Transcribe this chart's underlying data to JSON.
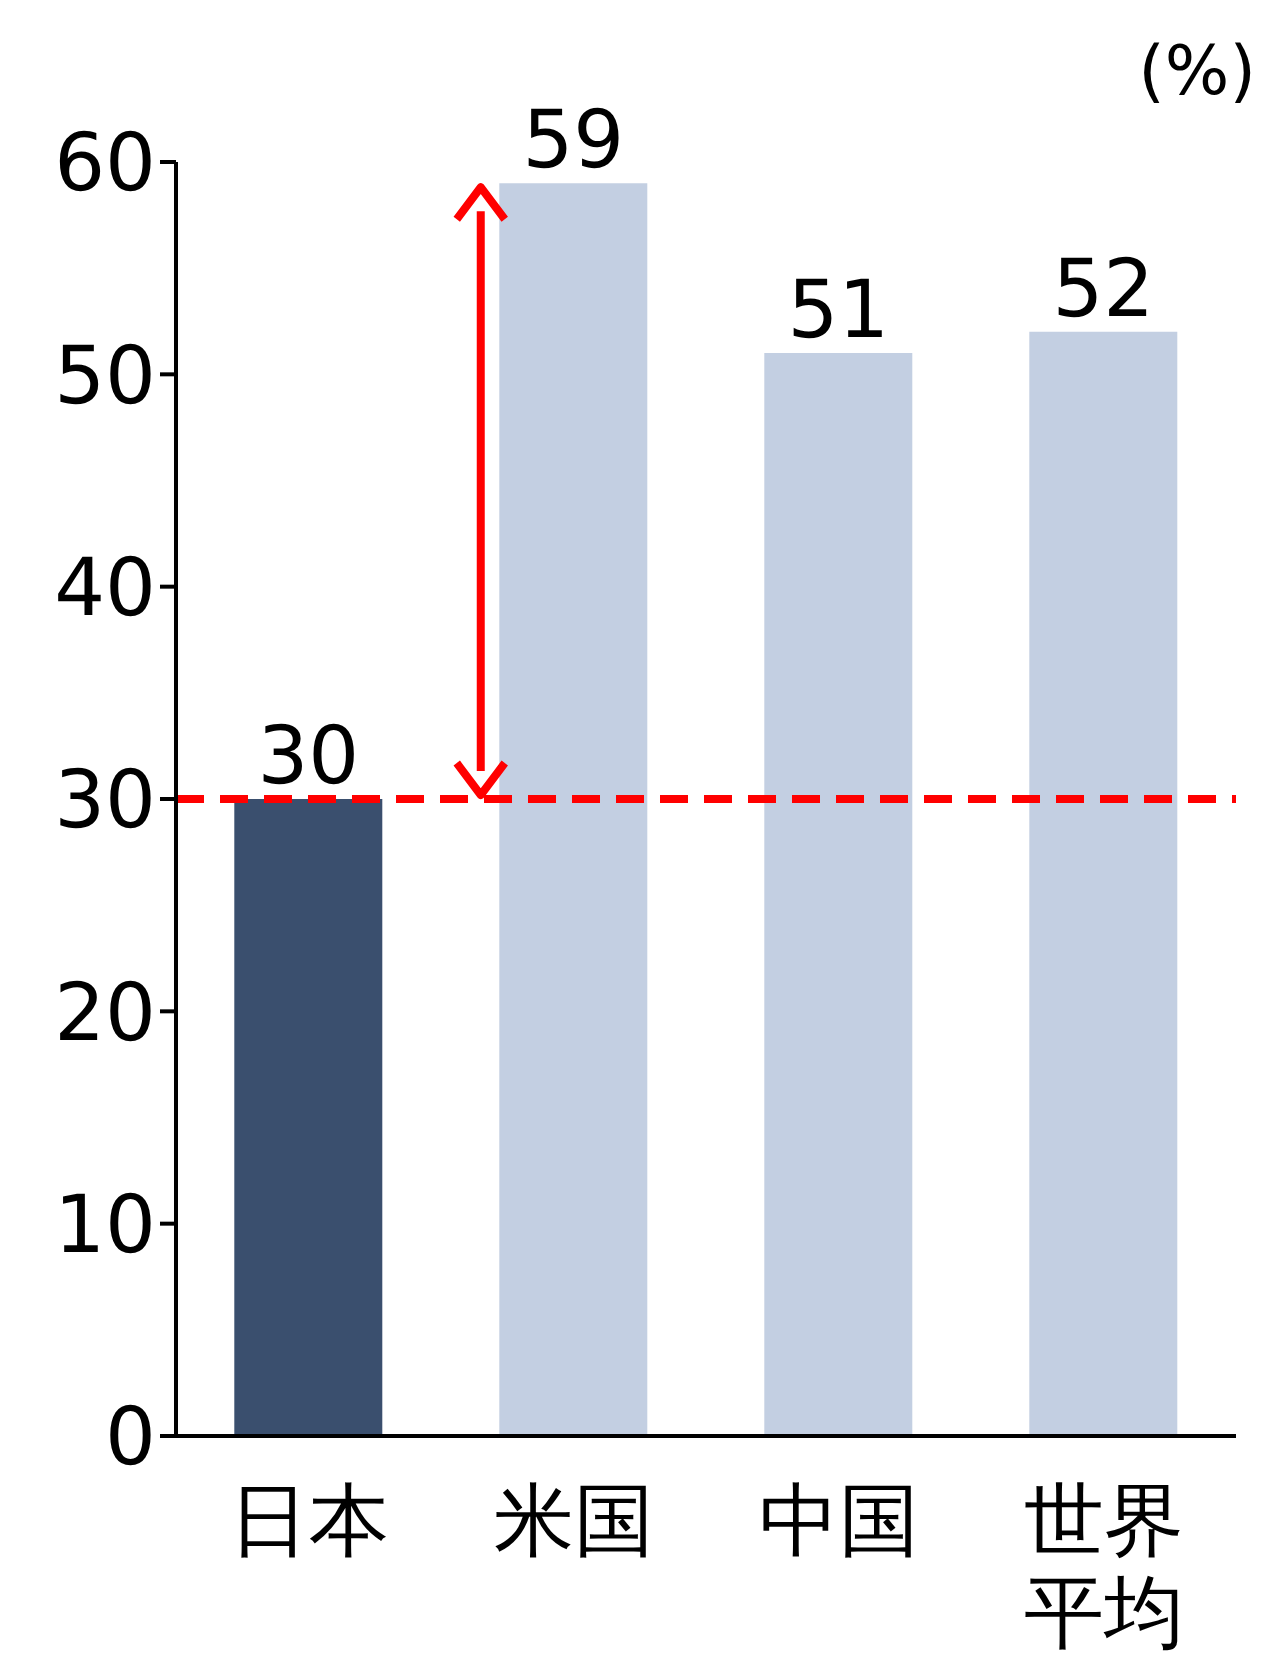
{
  "chart_data": {
    "type": "bar",
    "ylabel": "(%)",
    "categories": [
      "日本",
      "米国",
      "中国",
      "世界平均"
    ],
    "values": [
      30,
      59,
      51,
      52
    ],
    "colors": [
      "#3a4f6e",
      "#c3cfe2",
      "#c3cfe2",
      "#c3cfe2"
    ],
    "ylim": [
      0,
      60
    ],
    "yticks": [
      0,
      10,
      20,
      30,
      40,
      50,
      60
    ],
    "grid": false,
    "data_labels": true,
    "ref_lines": [
      {
        "axis": "y",
        "value": 30,
        "color": "#ff0000",
        "line_style": "dashed"
      }
    ]
  }
}
